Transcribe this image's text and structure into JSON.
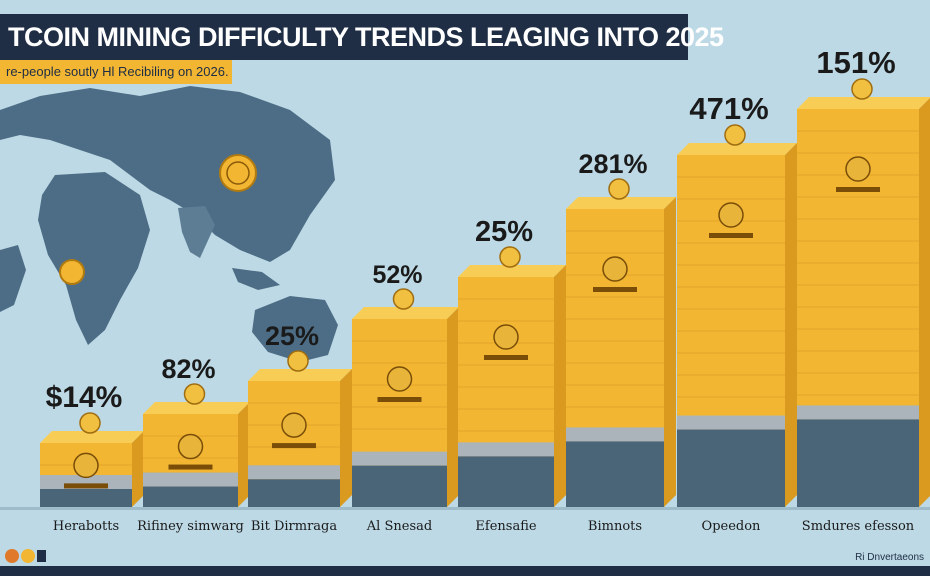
{
  "header": {
    "title": "TCOIN MINING DIFFICULTY TRENDS LEAGING INTO 2025",
    "subtitle": "re-people soutly Hl Recibiling on 2026."
  },
  "footer": {
    "source": "Ri Dnvertaeons"
  },
  "colors": {
    "background": "#bcd9e5",
    "bar_top": "#f2b632",
    "bar_top_face": "#f7cd55",
    "bar_side": "#d99a1f",
    "bar_base": "#4a6478",
    "map_land": "#4d6d86",
    "title_bg": "#1f2e45"
  },
  "chart_data": {
    "type": "bar",
    "title": "TCOIN MINING DIFFICULTY TRENDS LEAGING INTO 2025",
    "categories": [
      "Herabotts",
      "Rifiney simwarg",
      "Bit Dirmraga",
      "Al Snesad",
      "Efensafie",
      "Bimnots",
      "Opeedon",
      "Smdures efesson"
    ],
    "data_labels": [
      "$14%",
      "82%",
      "25%",
      "52%",
      "25%",
      "281%",
      "471%",
      "151%"
    ],
    "values": [
      14,
      82,
      25,
      52,
      25,
      281,
      471,
      151
    ],
    "legend": "none",
    "grid": false
  }
}
